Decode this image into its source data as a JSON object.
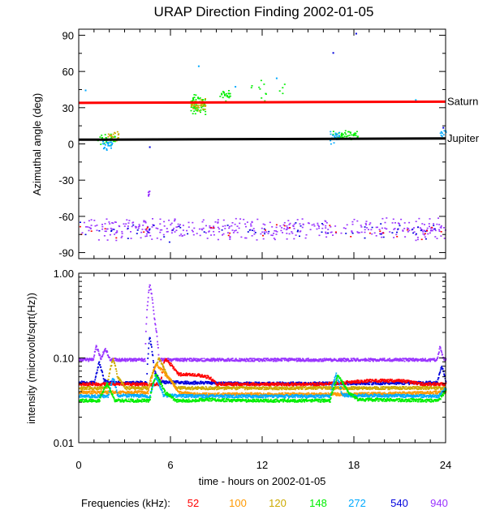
{
  "chart_data": {
    "type": "scatter",
    "title": "URAP Direction Finding  2002-01-05",
    "x_axis": {
      "label": "time - hours on 2002-01-05",
      "range": [
        0,
        24
      ],
      "tick_labels": [
        "0",
        "6",
        "12",
        "18",
        "24"
      ],
      "tick_values": [
        0,
        6,
        12,
        18,
        24
      ]
    },
    "legend": {
      "title": "Frequencies (kHz):",
      "placement": "bottom",
      "entries": [
        {
          "label": "52",
          "color": "#ff0000"
        },
        {
          "label": "100",
          "color": "#ff9900"
        },
        {
          "label": "120",
          "color": "#ccaa00"
        },
        {
          "label": "148",
          "color": "#00ee00"
        },
        {
          "label": "272",
          "color": "#00aaff"
        },
        {
          "label": "540",
          "color": "#0000dd"
        },
        {
          "label": "940",
          "color": "#9933ff"
        }
      ]
    },
    "panels": [
      {
        "name": "azimuth",
        "ylabel": "Azimuthal angle (deg)",
        "ylim": [
          -95,
          95
        ],
        "scale": "linear",
        "y_tick_labels": [
          "90",
          "60",
          "30",
          "0",
          "-30",
          "-60",
          "-90"
        ],
        "y_tick_values": [
          90,
          60,
          30,
          0,
          -30,
          -60,
          -90
        ],
        "reference_lines": [
          {
            "label": "Saturn",
            "color": "#ff0000",
            "points": [
              [
                0,
                34
              ],
              [
                12,
                34.5
              ],
              [
                24,
                35
              ]
            ]
          },
          {
            "label": "Jupiter",
            "color": "#000000",
            "points": [
              [
                0,
                3.5
              ],
              [
                24,
                4.5
              ]
            ]
          }
        ],
        "clusters": [
          {
            "freq": "940",
            "x": [
              0,
              24
            ],
            "y_center": -70,
            "y_spread": 10,
            "count": 420
          },
          {
            "freq": "540",
            "x": [
              0,
              24
            ],
            "y_center": -72,
            "y_spread": 9,
            "count": 60
          },
          {
            "freq": "52",
            "x": [
              0,
              24
            ],
            "y_center": -72,
            "y_spread": 9,
            "count": 30
          },
          {
            "freq": "148",
            "x": [
              7.3,
              8.3
            ],
            "y_center": 32,
            "y_spread": 10,
            "count": 70
          },
          {
            "freq": "120",
            "x": [
              7.3,
              8.3
            ],
            "y_center": 33,
            "y_spread": 6,
            "count": 35
          },
          {
            "freq": "148",
            "x": [
              9.2,
              9.9
            ],
            "y_center": 40,
            "y_spread": 8,
            "count": 25
          },
          {
            "freq": "148",
            "x": [
              1.2,
              2.4
            ],
            "y_center": 4,
            "y_spread": 6,
            "count": 28
          },
          {
            "freq": "272",
            "x": [
              1.5,
              2.2
            ],
            "y_center": 0,
            "y_spread": 5,
            "count": 28
          },
          {
            "freq": "120",
            "x": [
              1.8,
              2.6
            ],
            "y_center": 7,
            "y_spread": 5,
            "count": 20
          },
          {
            "freq": "148",
            "x": [
              16.5,
              18.2
            ],
            "y_center": 8,
            "y_spread": 5,
            "count": 45
          },
          {
            "freq": "272",
            "x": [
              16.4,
              17
            ],
            "y_center": 6,
            "y_spread": 6,
            "count": 22
          },
          {
            "freq": "272",
            "x": [
              23.6,
              24
            ],
            "y_center": 10,
            "y_spread": 5,
            "count": 10
          },
          {
            "freq": "940",
            "x": [
              4.5,
              4.6
            ],
            "y_center": -40,
            "y_spread": 4,
            "count": 8
          },
          {
            "freq": "148",
            "x": [
              11,
              13.5
            ],
            "y_center": 45,
            "y_spread": 12,
            "count": 14
          }
        ],
        "points": [
          {
            "freq": "540",
            "x": [
              16.6
            ],
            "y": [
              76
            ]
          },
          {
            "freq": "272",
            "x": [
              0.4,
              7.8,
              10.2,
              12.9,
              22
            ],
            "y": [
              45,
              65,
              48,
              55,
              37
            ]
          },
          {
            "freq": "540",
            "x": [
              4.6,
              18.1,
              23.8
            ],
            "y": [
              -2,
              92,
              14
            ]
          }
        ]
      },
      {
        "name": "intensity",
        "ylabel": "intensity (microvolt/sqrt(Hz))",
        "ylim": [
          0.01,
          1.0
        ],
        "scale": "log",
        "y_tick_labels": [
          "1.00",
          "0.10",
          "0.01"
        ],
        "y_tick_values": [
          1.0,
          0.1,
          0.01
        ],
        "series": [
          {
            "freq": "940",
            "x": [
              0,
              0.9,
              1.1,
              1.4,
              1.7,
              2,
              2.3,
              4.3,
              4.6,
              4.9,
              5.2,
              23.4,
              23.6,
              23.8,
              24
            ],
            "y": [
              0.097,
              0.097,
              0.14,
              0.1,
              0.13,
              0.097,
              0.097,
              0.097,
              0.75,
              0.3,
              0.097,
              0.097,
              0.14,
              0.1,
              0.097
            ]
          },
          {
            "freq": "540",
            "x": [
              0,
              1,
              1.3,
              1.6,
              2,
              4.4,
              4.6,
              4.9,
              5.3,
              10,
              16.5,
              17,
              23.4,
              23.7,
              24
            ],
            "y": [
              0.052,
              0.052,
              0.09,
              0.055,
              0.052,
              0.052,
              0.18,
              0.07,
              0.053,
              0.051,
              0.051,
              0.051,
              0.052,
              0.08,
              0.052
            ]
          },
          {
            "freq": "52",
            "x": [
              0,
              5.3,
              5.6,
              6.5,
              7.5,
              8.5,
              9,
              12,
              16,
              19,
              21,
              22.5,
              24
            ],
            "y": [
              0.05,
              0.05,
              0.1,
              0.065,
              0.065,
              0.06,
              0.05,
              0.05,
              0.05,
              0.055,
              0.055,
              0.05,
              0.05
            ]
          },
          {
            "freq": "120",
            "x": [
              0,
              1.8,
              2.2,
              2.5,
              3,
              4.5,
              5.2,
              5.8,
              6.4,
              7,
              16,
              18,
              24
            ],
            "y": [
              0.045,
              0.045,
              0.1,
              0.06,
              0.045,
              0.045,
              0.1,
              0.06,
              0.045,
              0.045,
              0.045,
              0.045,
              0.045
            ]
          },
          {
            "freq": "100",
            "x": [
              0,
              4.5,
              5,
              5.8,
              6.5,
              7.5,
              12,
              18,
              24
            ],
            "y": [
              0.04,
              0.04,
              0.085,
              0.06,
              0.04,
              0.038,
              0.038,
              0.038,
              0.04
            ]
          },
          {
            "freq": "272",
            "x": [
              0,
              1.9,
              2.2,
              2.5,
              4.6,
              5,
              5.5,
              8,
              12,
              16.4,
              16.8,
              17.2,
              23.5,
              24
            ],
            "y": [
              0.036,
              0.036,
              0.06,
              0.037,
              0.036,
              0.06,
              0.037,
              0.036,
              0.036,
              0.036,
              0.065,
              0.037,
              0.036,
              0.045
            ]
          },
          {
            "freq": "148",
            "x": [
              0,
              1.3,
              1.8,
              2.3,
              4.6,
              5,
              5.6,
              6.3,
              7.3,
              8.3,
              10,
              16.4,
              16.9,
              17.6,
              18.2,
              23.5,
              24
            ],
            "y": [
              0.032,
              0.032,
              0.05,
              0.032,
              0.032,
              0.065,
              0.04,
              0.032,
              0.032,
              0.033,
              0.032,
              0.032,
              0.062,
              0.04,
              0.033,
              0.032,
              0.042
            ]
          }
        ]
      }
    ]
  }
}
